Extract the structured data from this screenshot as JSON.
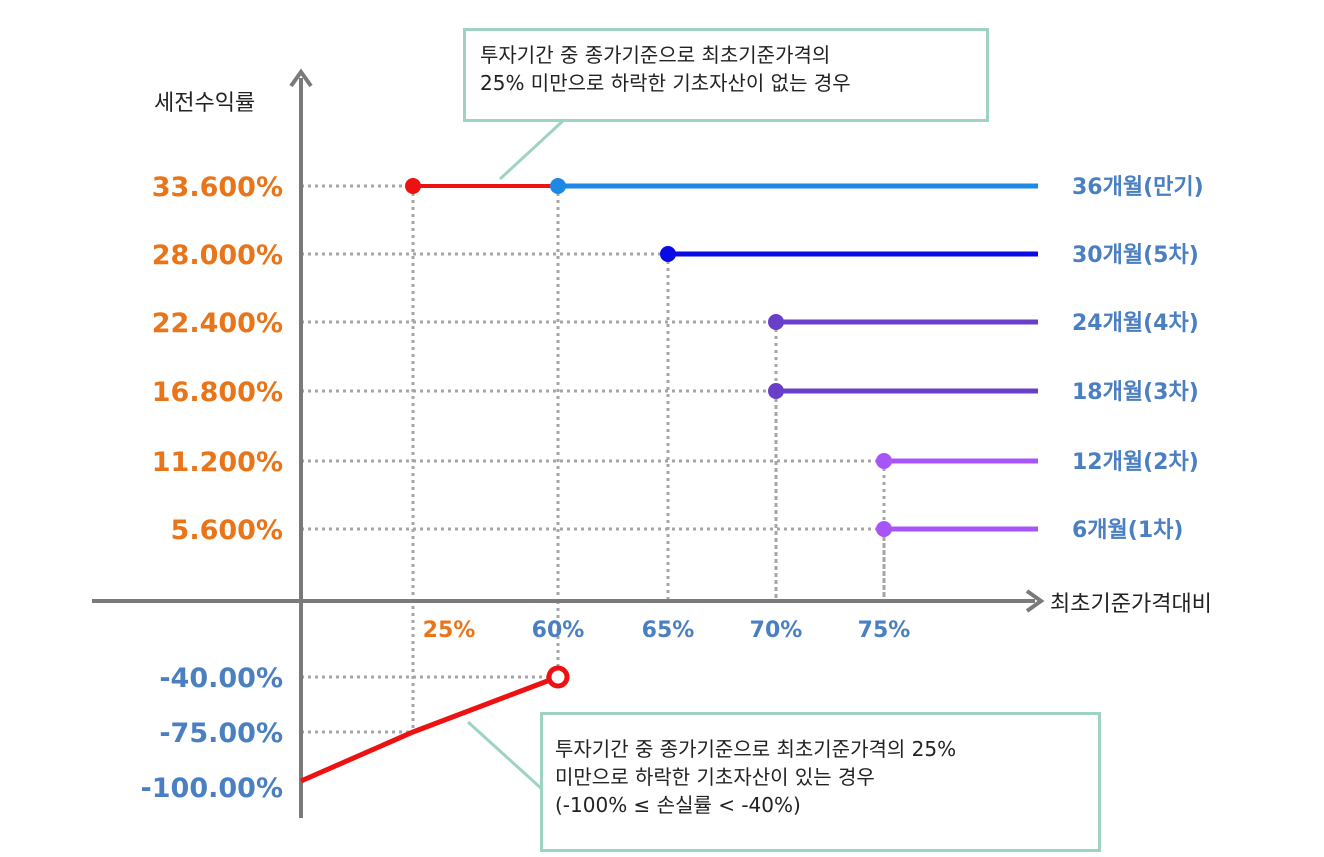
{
  "chart_data": {
    "type": "line",
    "ylabel": "세전수익률",
    "xlabel": "최초기준가격대비",
    "y_ticks": [
      {
        "label": "33.600%",
        "color": "#e8751a"
      },
      {
        "label": "28.000%",
        "color": "#e8751a"
      },
      {
        "label": "22.400%",
        "color": "#e8751a"
      },
      {
        "label": "16.800%",
        "color": "#e8751a"
      },
      {
        "label": "11.200%",
        "color": "#e8751a"
      },
      {
        "label": "5.600%",
        "color": "#e8751a"
      },
      {
        "label": "-40.00%",
        "color": "#4a7fc1"
      },
      {
        "label": "-75.00%",
        "color": "#4a7fc1"
      },
      {
        "label": "-100.00%",
        "color": "#4a7fc1"
      }
    ],
    "x_ticks": [
      {
        "label": "25%",
        "color": "#e8751a"
      },
      {
        "label": "60%",
        "color": "#4a7fc1"
      },
      {
        "label": "65%",
        "color": "#4a7fc1"
      },
      {
        "label": "70%",
        "color": "#4a7fc1"
      },
      {
        "label": "75%",
        "color": "#4a7fc1"
      }
    ],
    "series": [
      {
        "name": "36개월(만기)",
        "barrier": 60,
        "return": 33.6,
        "color": "#1e88e5"
      },
      {
        "name": "30개월(5차)",
        "barrier": 65,
        "return": 28.0,
        "color": "#0a0ae6"
      },
      {
        "name": "24개월(4차)",
        "barrier": 70,
        "return": 22.4,
        "color": "#6a3fc8"
      },
      {
        "name": "18개월(3차)",
        "barrier": 70,
        "return": 16.8,
        "color": "#6a3fc8"
      },
      {
        "name": "12개월(2차)",
        "barrier": 75,
        "return": 11.2,
        "color": "#a855f7"
      },
      {
        "name": "6개월(1차)",
        "barrier": 75,
        "return": 5.6,
        "color": "#a855f7"
      }
    ],
    "maturity_no_breach": {
      "from": 25,
      "to": 60,
      "return": 33.6,
      "color": "#ee1111"
    },
    "loss_line": {
      "points": [
        {
          "x": 0,
          "y": -100
        },
        {
          "x": 25,
          "y": -75
        },
        {
          "x": 60,
          "y": -40
        }
      ],
      "color": "#ee1111"
    },
    "series_label_color": "#4a7fc1"
  },
  "notes": {
    "top": [
      "투자기간 중 종가기준으로 최초기준가격의",
      "25% 미만으로 하락한 기초자산이 없는 경우"
    ],
    "bottom": [
      "투자기간 중 종가기준으로 최초기준가격의 25%",
      "미만으로 하락한 기초자산이 있는 경우",
      "(-100% ≤ 손실률 < -40%)"
    ]
  }
}
